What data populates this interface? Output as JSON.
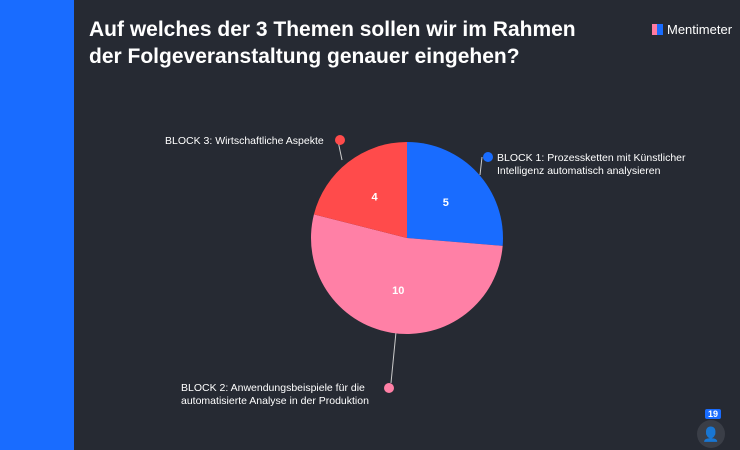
{
  "title": "Auf welches der 3 Themen sollen wir im Rahmen der Folgeveranstaltung genauer eingehen?",
  "brand": "Mentimeter",
  "participants": "19",
  "chart_data": {
    "type": "pie",
    "title": "Auf welches der 3 Themen sollen wir im Rahmen der Folgeveranstaltung genauer eingehen?",
    "categories": [
      "BLOCK 1: Prozessketten mit Künstlicher Intelligenz automatisch analysieren",
      "BLOCK 2: Anwendungsbeispiele für die automatisierte Analyse in der Produktion",
      "BLOCK 3: Wirtschaftliche Aspekte"
    ],
    "values": [
      5,
      10,
      4
    ],
    "colors": [
      "#196cff",
      "#ff80a6",
      "#ff4b4b"
    ]
  }
}
